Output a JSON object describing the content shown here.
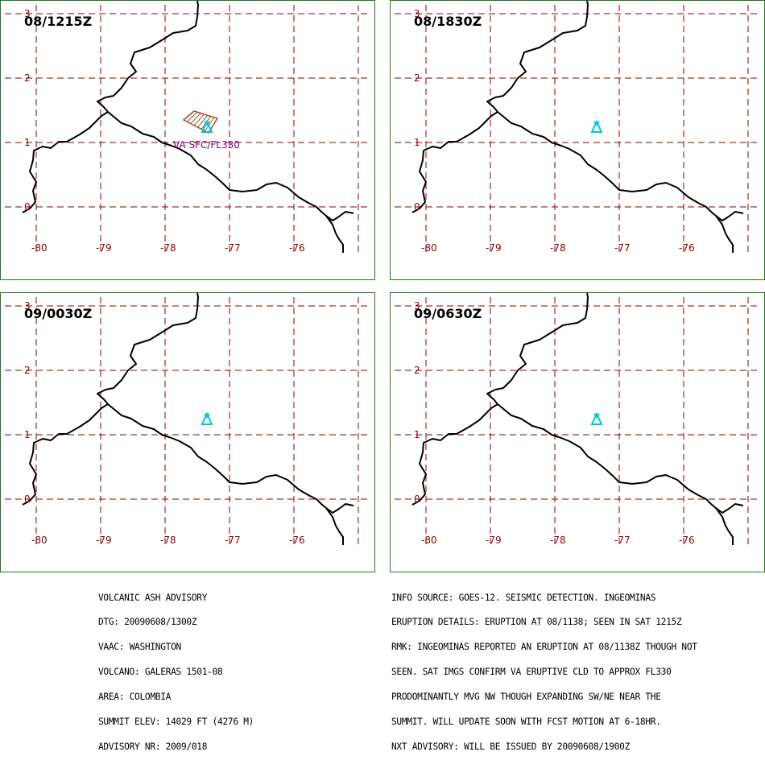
{
  "colors": {
    "panel_border": "#1f7a1f",
    "grid": "#8b0000",
    "coastline": "#000000",
    "volcano": "#00c8d7",
    "ash_outline": "#a0522d",
    "ash_label": "#800080"
  },
  "map": {
    "lon_labels": [
      "-80",
      "-79",
      "-78",
      "-77",
      "-76"
    ],
    "lat_labels": [
      "0",
      "1",
      "2",
      "3"
    ]
  },
  "panels": [
    {
      "time": "08/1215Z",
      "ash_label": "VA SFC/FL330"
    },
    {
      "time": "08/1830Z",
      "ash_label": ""
    },
    {
      "time": "09/0030Z",
      "ash_label": ""
    },
    {
      "time": "09/0630Z",
      "ash_label": ""
    }
  ],
  "advisory": {
    "left_lines": [
      "VOLCANIC ASH ADVISORY",
      "DTG: 20090608/1300Z",
      "VAAC: WASHINGTON",
      "VOLCANO: GALERAS 1501-08",
      "AREA: COLOMBIA",
      "SUMMIT ELEV: 14029 FT (4276 M)",
      "ADVISORY NR: 2009/018"
    ],
    "right_lines": [
      "INFO SOURCE: GOES-12. SEISMIC DETECTION. INGEOMINAS",
      "ERUPTION DETAILS: ERUPTION AT 08/1138; SEEN IN SAT 1215Z",
      "RMK: INGEOMINAS REPORTED AN ERUPTION AT 08/1138Z THOUGH NOT",
      "SEEN. SAT IMGS CONFIRM VA ERUPTIVE CLD TO APPROX FL330",
      "PRODOMINANTLY MVG NW THOUGH EXPANDING SW/NE NEAR THE",
      "SUMMIT. WILL UPDATE SOON WITH FCST MOTION AT 6-18HR.",
      "NXT ADVISORY: WILL BE ISSUED BY 20090608/1900Z"
    ]
  }
}
